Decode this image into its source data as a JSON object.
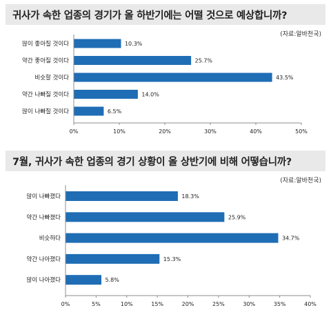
{
  "colors": {
    "bar": "#1f6db5",
    "title_bg": "#e9e9e9",
    "axis": "#8c8c8c"
  },
  "chart_data": [
    {
      "type": "bar",
      "orientation": "horizontal",
      "title": "귀사가 속한 업종의 경기가 올 하반기에는 어떨 것으로 예상합니까?",
      "source": "(자료:알바천국)",
      "categories": [
        "많이 좋아질 것이다",
        "약간 좋아질 것이다",
        "비슷할 것이다",
        "약간 나빠질 것이다",
        "많이 나빠질 것이다"
      ],
      "values": [
        10.3,
        25.7,
        43.5,
        14.0,
        6.5
      ],
      "value_labels": [
        "10.3%",
        "25.7%",
        "43.5%",
        "14.0%",
        "6.5%"
      ],
      "xlim": [
        0,
        50
      ],
      "ticks": [
        0,
        10,
        20,
        30,
        40,
        50
      ],
      "tick_labels": [
        "0%",
        "10%",
        "20%",
        "30%",
        "40%",
        "50%"
      ],
      "grid": false
    },
    {
      "type": "bar",
      "orientation": "horizontal",
      "title": "7월, 귀사가 속한 업종의 경기 상황이 올 상반기에 비해 어떻습니까?",
      "source": "(자료:알바천국)",
      "categories": [
        "많이 나빠졌다",
        "약간 나빠졌다",
        "비슷하다",
        "약간 나아졌다",
        "많이 나아졌다"
      ],
      "values": [
        18.3,
        25.9,
        34.7,
        15.3,
        5.8
      ],
      "value_labels": [
        "18.3%",
        "25.9%",
        "34.7%",
        "15.3%",
        "5.8%"
      ],
      "xlim": [
        0,
        40
      ],
      "ticks": [
        0,
        5,
        10,
        15,
        20,
        25,
        30,
        35,
        40
      ],
      "tick_labels": [
        "0%",
        "5%",
        "10%",
        "15%",
        "20%",
        "25%",
        "30%",
        "35%",
        "40%"
      ],
      "grid": false
    }
  ]
}
